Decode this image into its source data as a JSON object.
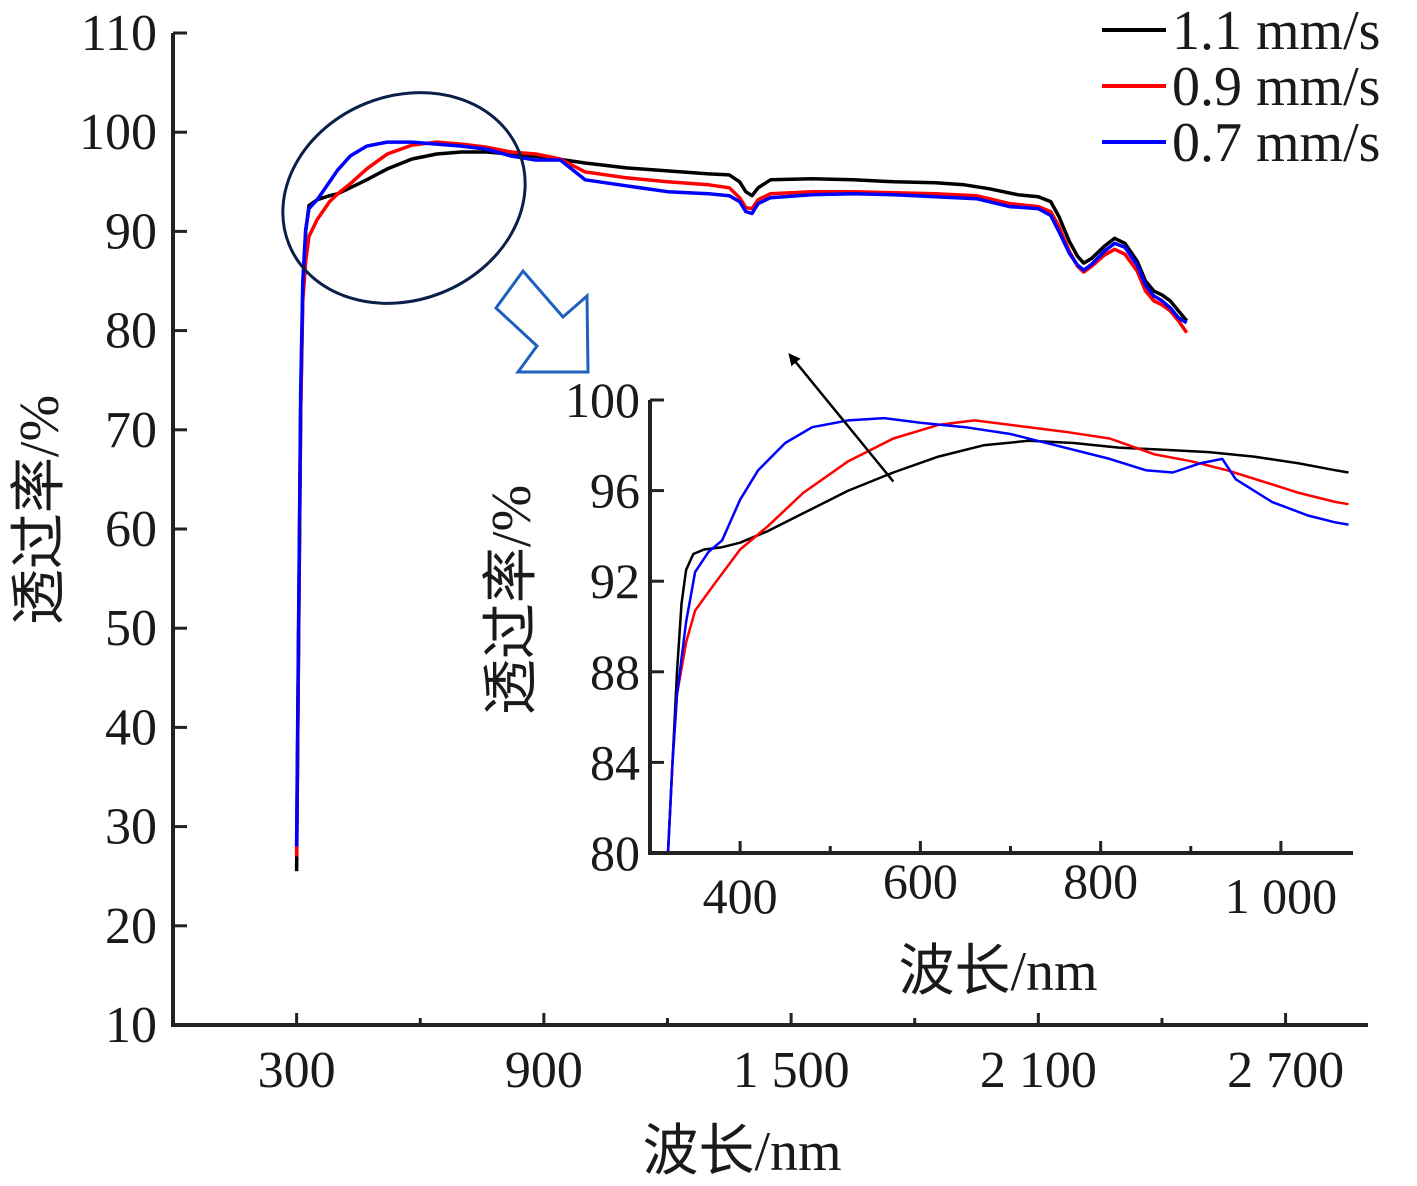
{
  "chart_data": [
    {
      "type": "line",
      "xlabel": "波长/nm",
      "ylabel": "透过率/%",
      "xlim": [
        0,
        2900
      ],
      "ylim": [
        10,
        110
      ],
      "x_tick_values": [
        300,
        900,
        1500,
        2100,
        2700
      ],
      "x_tick_labels": [
        "300",
        "900",
        "1 500",
        "2 100",
        "2 700"
      ],
      "x_minor_ticks": [
        600,
        1200,
        1800,
        2400
      ],
      "y_tick_values": [
        10,
        20,
        30,
        40,
        50,
        60,
        70,
        80,
        90,
        100,
        110
      ],
      "y_tick_labels": [
        "10",
        "20",
        "30",
        "40",
        "50",
        "60",
        "70",
        "80",
        "90",
        "100",
        "110"
      ],
      "grid": false,
      "legend_position": "top-right",
      "series": [
        {
          "name": "1.1 mm/s",
          "color": "#000000",
          "points": [
            [
              300,
              25.5
            ],
            [
              305,
              50
            ],
            [
              310,
              72
            ],
            [
              315,
              84
            ],
            [
              322,
              90
            ],
            [
              330,
              92.6
            ],
            [
              350,
              93.2
            ],
            [
              380,
              93.6
            ],
            [
              400,
              93.8
            ],
            [
              430,
              94.4
            ],
            [
              470,
              95.2
            ],
            [
              520,
              96.3
            ],
            [
              580,
              97.3
            ],
            [
              640,
              97.8
            ],
            [
              700,
              98.0
            ],
            [
              760,
              98.0
            ],
            [
              820,
              97.8
            ],
            [
              900,
              97.5
            ],
            [
              1000,
              96.9
            ],
            [
              1100,
              96.4
            ],
            [
              1200,
              96.1
            ],
            [
              1300,
              95.8
            ],
            [
              1350,
              95.7
            ],
            [
              1375,
              95.0
            ],
            [
              1390,
              94.0
            ],
            [
              1405,
              93.6
            ],
            [
              1420,
              94.4
            ],
            [
              1450,
              95.2
            ],
            [
              1550,
              95.3
            ],
            [
              1650,
              95.2
            ],
            [
              1750,
              95.0
            ],
            [
              1850,
              94.9
            ],
            [
              1920,
              94.7
            ],
            [
              1980,
              94.3
            ],
            [
              2050,
              93.7
            ],
            [
              2100,
              93.5
            ],
            [
              2130,
              93.0
            ],
            [
              2150,
              91.5
            ],
            [
              2175,
              89.0
            ],
            [
              2195,
              87.5
            ],
            [
              2210,
              86.8
            ],
            [
              2230,
              87.3
            ],
            [
              2260,
              88.5
            ],
            [
              2285,
              89.3
            ],
            [
              2310,
              88.8
            ],
            [
              2340,
              87.0
            ],
            [
              2360,
              85.0
            ],
            [
              2380,
              84.0
            ],
            [
              2400,
              83.6
            ],
            [
              2420,
              83.0
            ],
            [
              2440,
              82.0
            ],
            [
              2460,
              81.0
            ]
          ]
        },
        {
          "name": "0.9 mm/s",
          "color": "#ff0000",
          "points": [
            [
              300,
              27
            ],
            [
              305,
              50
            ],
            [
              310,
              72
            ],
            [
              315,
              83
            ],
            [
              322,
              87
            ],
            [
              330,
              89.5
            ],
            [
              350,
              91.2
            ],
            [
              380,
              93.0
            ],
            [
              400,
              93.8
            ],
            [
              430,
              94.8
            ],
            [
              470,
              96.3
            ],
            [
              520,
              97.8
            ],
            [
              580,
              98.7
            ],
            [
              640,
              99.0
            ],
            [
              700,
              98.8
            ],
            [
              760,
              98.5
            ],
            [
              820,
              98.0
            ],
            [
              880,
              97.8
            ],
            [
              940,
              97.3
            ],
            [
              1000,
              96.0
            ],
            [
              1100,
              95.4
            ],
            [
              1200,
              95.0
            ],
            [
              1300,
              94.7
            ],
            [
              1350,
              94.4
            ],
            [
              1375,
              93.4
            ],
            [
              1390,
              92.4
            ],
            [
              1405,
              92.3
            ],
            [
              1420,
              93.2
            ],
            [
              1450,
              93.8
            ],
            [
              1550,
              94.0
            ],
            [
              1650,
              94.0
            ],
            [
              1750,
              93.9
            ],
            [
              1850,
              93.8
            ],
            [
              1950,
              93.6
            ],
            [
              2030,
              92.8
            ],
            [
              2100,
              92.5
            ],
            [
              2130,
              92.0
            ],
            [
              2150,
              90.5
            ],
            [
              2175,
              88.0
            ],
            [
              2195,
              86.5
            ],
            [
              2210,
              85.9
            ],
            [
              2230,
              86.5
            ],
            [
              2260,
              87.6
            ],
            [
              2285,
              88.2
            ],
            [
              2310,
              87.7
            ],
            [
              2340,
              86.0
            ],
            [
              2360,
              84.0
            ],
            [
              2380,
              83.0
            ],
            [
              2400,
              82.6
            ],
            [
              2420,
              82.0
            ],
            [
              2440,
              81.0
            ],
            [
              2460,
              79.8
            ]
          ]
        },
        {
          "name": "0.7 mm/s",
          "color": "#0000ff",
          "points": [
            [
              300,
              28
            ],
            [
              305,
              52
            ],
            [
              310,
              74
            ],
            [
              315,
              85
            ],
            [
              322,
              90.2
            ],
            [
              330,
              92.3
            ],
            [
              350,
              93.2
            ],
            [
              370,
              94.4
            ],
            [
              400,
              96.2
            ],
            [
              430,
              97.6
            ],
            [
              470,
              98.6
            ],
            [
              520,
              99.0
            ],
            [
              580,
              99.0
            ],
            [
              640,
              98.8
            ],
            [
              700,
              98.6
            ],
            [
              760,
              98.3
            ],
            [
              820,
              97.6
            ],
            [
              880,
              97.2
            ],
            [
              940,
              97.2
            ],
            [
              1000,
              95.2
            ],
            [
              1100,
              94.6
            ],
            [
              1200,
              94.0
            ],
            [
              1300,
              93.8
            ],
            [
              1350,
              93.6
            ],
            [
              1375,
              93.0
            ],
            [
              1390,
              92.0
            ],
            [
              1405,
              91.8
            ],
            [
              1420,
              92.8
            ],
            [
              1450,
              93.4
            ],
            [
              1550,
              93.7
            ],
            [
              1650,
              93.8
            ],
            [
              1750,
              93.7
            ],
            [
              1850,
              93.5
            ],
            [
              1950,
              93.3
            ],
            [
              2030,
              92.5
            ],
            [
              2100,
              92.3
            ],
            [
              2130,
              91.6
            ],
            [
              2150,
              90.0
            ],
            [
              2175,
              87.8
            ],
            [
              2195,
              86.6
            ],
            [
              2210,
              86.1
            ],
            [
              2230,
              86.7
            ],
            [
              2260,
              88.0
            ],
            [
              2285,
              88.8
            ],
            [
              2310,
              88.4
            ],
            [
              2340,
              86.6
            ],
            [
              2360,
              84.6
            ],
            [
              2380,
              83.5
            ],
            [
              2400,
              83.0
            ],
            [
              2420,
              82.3
            ],
            [
              2440,
              81.3
            ],
            [
              2460,
              80.8
            ]
          ]
        }
      ],
      "annotations": {
        "highlight_ellipse": {
          "color": "#0b1f4a"
        },
        "pointer_arrow": {
          "color": "#1f5fbf"
        }
      }
    },
    {
      "type": "line",
      "inset": true,
      "xlabel": "波长/nm",
      "ylabel": "透过率/%",
      "xlim": [
        300,
        1080
      ],
      "ylim": [
        80,
        100
      ],
      "x_tick_values": [
        400,
        600,
        800,
        1000
      ],
      "x_tick_labels": [
        "400",
        "600",
        "800",
        "1 000"
      ],
      "x_minor_ticks": [
        500,
        700,
        900
      ],
      "y_tick_values": [
        80,
        84,
        88,
        92,
        96,
        100
      ],
      "y_tick_labels": [
        "80",
        "84",
        "88",
        "92",
        "96",
        "100"
      ],
      "grid": false,
      "trend_arrow": {
        "from": [
          570,
          96.4
        ],
        "to": [
          455,
          102
        ],
        "color": "#000000"
      },
      "series": [
        {
          "name": "1.1 mm/s",
          "color": "#000000",
          "points": [
            [
              320,
              80
            ],
            [
              325,
              84
            ],
            [
              330,
              88
            ],
            [
              335,
              91
            ],
            [
              340,
              92.5
            ],
            [
              348,
              93.2
            ],
            [
              360,
              93.4
            ],
            [
              380,
              93.5
            ],
            [
              400,
              93.7
            ],
            [
              430,
              94.2
            ],
            [
              470,
              95.0
            ],
            [
              520,
              96.0
            ],
            [
              570,
              96.8
            ],
            [
              620,
              97.5
            ],
            [
              670,
              98.0
            ],
            [
              720,
              98.2
            ],
            [
              770,
              98.1
            ],
            [
              820,
              97.9
            ],
            [
              870,
              97.8
            ],
            [
              920,
              97.7
            ],
            [
              970,
              97.5
            ],
            [
              1020,
              97.2
            ],
            [
              1060,
              96.9
            ],
            [
              1075,
              96.8
            ]
          ]
        },
        {
          "name": "0.9 mm/s",
          "color": "#ff0000",
          "points": [
            [
              320,
              80
            ],
            [
              325,
              84
            ],
            [
              330,
              87
            ],
            [
              340,
              89.3
            ],
            [
              350,
              90.7
            ],
            [
              370,
              91.8
            ],
            [
              400,
              93.4
            ],
            [
              430,
              94.4
            ],
            [
              470,
              95.9
            ],
            [
              520,
              97.3
            ],
            [
              570,
              98.3
            ],
            [
              620,
              98.9
            ],
            [
              660,
              99.1
            ],
            [
              700,
              98.9
            ],
            [
              760,
              98.6
            ],
            [
              810,
              98.3
            ],
            [
              860,
              97.6
            ],
            [
              900,
              97.3
            ],
            [
              940,
              96.9
            ],
            [
              980,
              96.4
            ],
            [
              1020,
              95.9
            ],
            [
              1060,
              95.5
            ],
            [
              1075,
              95.4
            ]
          ]
        },
        {
          "name": "0.7 mm/s",
          "color": "#0000ff",
          "points": [
            [
              320,
              80
            ],
            [
              325,
              84
            ],
            [
              330,
              87
            ],
            [
              340,
              90.2
            ],
            [
              350,
              92.4
            ],
            [
              365,
              93.3
            ],
            [
              380,
              93.8
            ],
            [
              400,
              95.6
            ],
            [
              420,
              96.9
            ],
            [
              450,
              98.1
            ],
            [
              480,
              98.8
            ],
            [
              520,
              99.1
            ],
            [
              560,
              99.2
            ],
            [
              600,
              99.0
            ],
            [
              650,
              98.8
            ],
            [
              700,
              98.5
            ],
            [
              760,
              97.9
            ],
            [
              810,
              97.4
            ],
            [
              850,
              96.9
            ],
            [
              880,
              96.8
            ],
            [
              910,
              97.2
            ],
            [
              935,
              97.4
            ],
            [
              950,
              96.5
            ],
            [
              990,
              95.5
            ],
            [
              1030,
              94.9
            ],
            [
              1060,
              94.6
            ],
            [
              1075,
              94.5
            ]
          ]
        }
      ]
    }
  ]
}
